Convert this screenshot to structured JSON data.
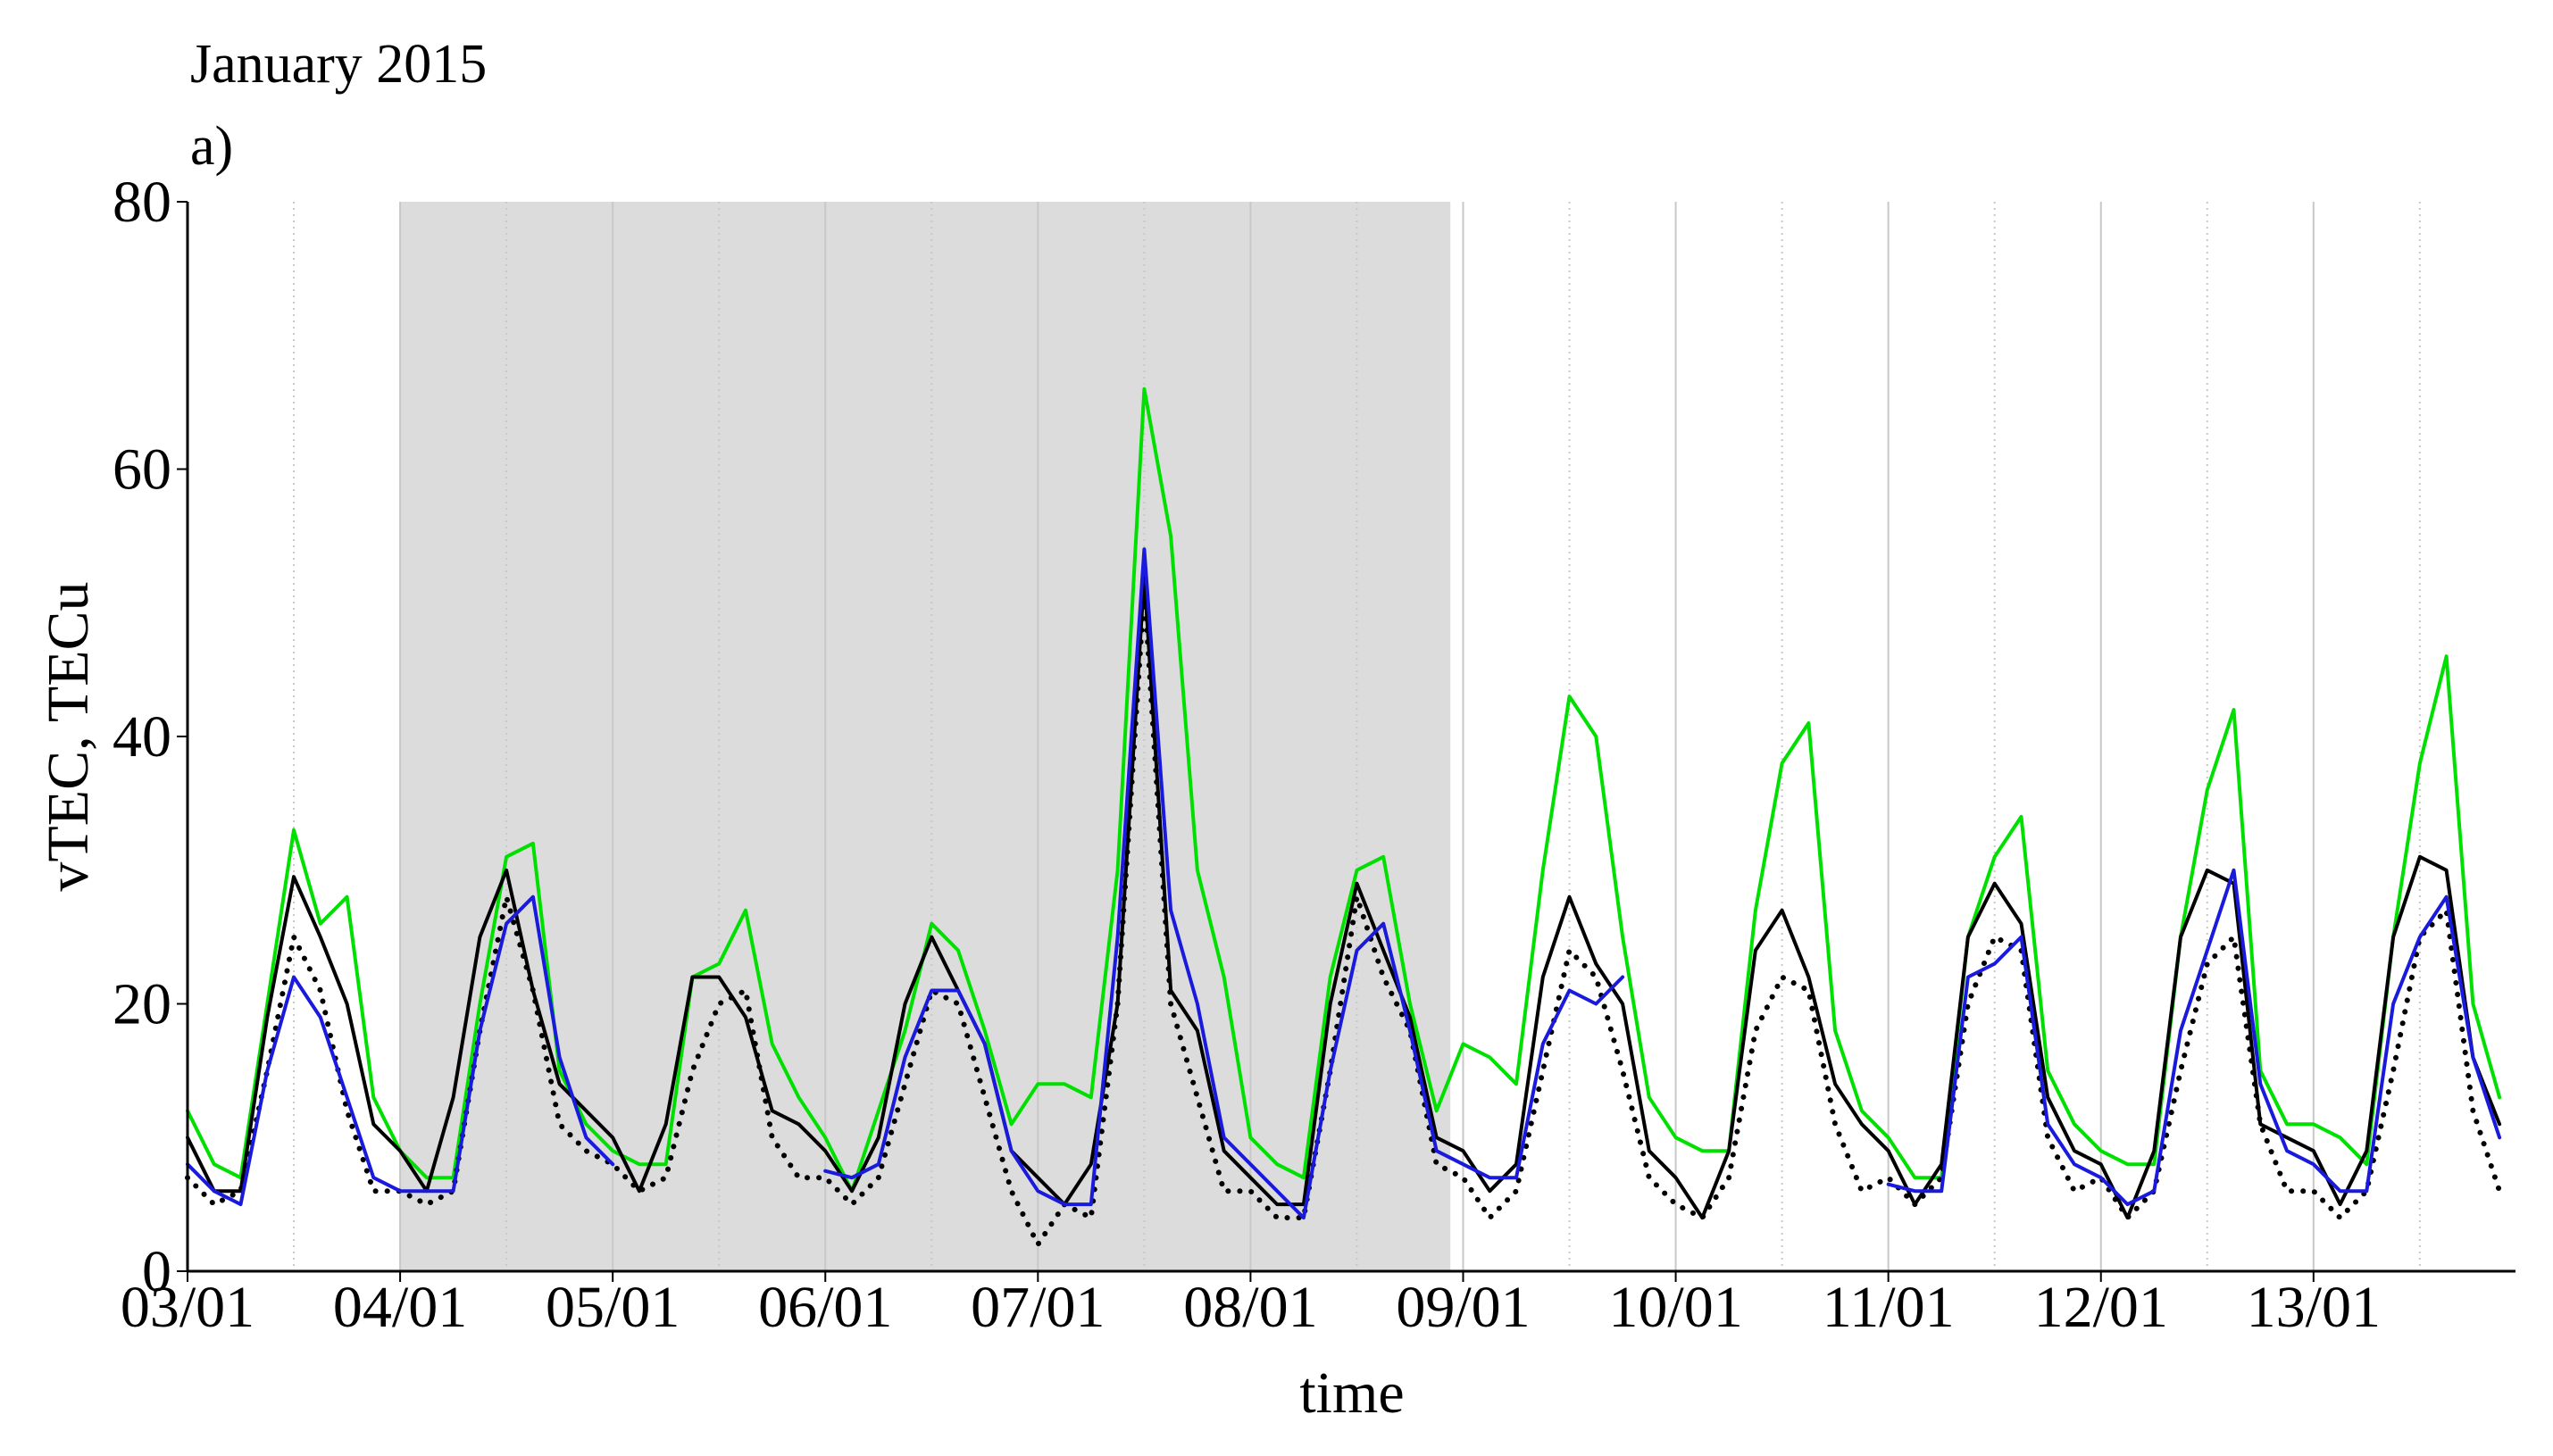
{
  "chart_data": {
    "type": "line",
    "title": "January 2015",
    "subtitle": "a)",
    "x_label": "time",
    "y_label": "vTEC, TECu",
    "xlim": [
      3,
      13.95
    ],
    "ylim": [
      0,
      80
    ],
    "yticks": [
      0,
      20,
      40,
      60,
      80
    ],
    "xticks": [
      {
        "value": 3,
        "label": "03/01"
      },
      {
        "value": 4,
        "label": "04/01"
      },
      {
        "value": 5,
        "label": "05/01"
      },
      {
        "value": 6,
        "label": "06/01"
      },
      {
        "value": 7,
        "label": "07/01"
      },
      {
        "value": 8,
        "label": "08/01"
      },
      {
        "value": 9,
        "label": "09/01"
      },
      {
        "value": 10,
        "label": "10/01"
      },
      {
        "value": 11,
        "label": "11/01"
      },
      {
        "value": 12,
        "label": "12/01"
      },
      {
        "value": 13,
        "label": "13/01"
      }
    ],
    "x_minor_grid": [
      3.5,
      4.5,
      5.5,
      6.5,
      7.5,
      8.5,
      9.5,
      10.5,
      11.5,
      12.5,
      13.5
    ],
    "grid": true,
    "highlight": {
      "xlim": [
        4,
        8.94
      ],
      "color": "#dcdcdc"
    },
    "x": [
      3,
      3.125,
      3.25,
      3.375,
      3.5,
      3.625,
      3.75,
      3.875,
      4,
      4.125,
      4.25,
      4.375,
      4.5,
      4.625,
      4.75,
      4.875,
      5,
      5.125,
      5.25,
      5.375,
      5.5,
      5.625,
      5.75,
      5.875,
      6,
      6.125,
      6.25,
      6.375,
      6.5,
      6.625,
      6.75,
      6.875,
      7,
      7.125,
      7.25,
      7.375,
      7.5,
      7.625,
      7.75,
      7.875,
      8,
      8.125,
      8.25,
      8.375,
      8.5,
      8.625,
      8.75,
      8.875,
      9,
      9.125,
      9.25,
      9.375,
      9.5,
      9.625,
      9.75,
      9.875,
      10,
      10.125,
      10.25,
      10.375,
      10.5,
      10.625,
      10.75,
      10.875,
      11,
      11.125,
      11.25,
      11.375,
      11.5,
      11.625,
      11.75,
      11.875,
      12,
      12.125,
      12.25,
      12.375,
      12.5,
      12.625,
      12.75,
      12.875,
      13,
      13.125,
      13.25,
      13.375,
      13.5,
      13.625,
      13.75,
      13.875
    ],
    "series": [
      {
        "color": "#00e000",
        "style": "solid",
        "values": [
          12,
          8,
          7,
          20,
          33,
          26,
          28,
          13,
          9,
          7,
          7,
          20,
          31,
          32,
          15,
          11,
          9,
          8,
          8,
          22,
          23,
          27,
          17,
          13,
          10,
          6,
          12,
          18,
          26,
          24,
          18,
          11,
          14,
          14,
          13,
          30,
          66,
          55,
          30,
          22,
          10,
          8,
          7,
          22,
          30,
          31,
          20,
          12,
          17,
          16,
          14,
          30,
          43,
          40,
          25,
          13,
          10,
          9,
          9,
          27,
          38,
          41,
          18,
          12,
          10,
          7,
          7,
          25,
          31,
          34,
          15,
          11,
          9,
          8,
          8,
          25,
          36,
          42,
          15,
          11,
          11,
          10,
          8,
          25,
          38,
          46,
          20,
          13
        ]
      },
      {
        "color": "#000000",
        "style": "dotted",
        "values": [
          7,
          5,
          6,
          15,
          25,
          21,
          12,
          6,
          6,
          5,
          6,
          18,
          28,
          21,
          11,
          9,
          8,
          6,
          7,
          15,
          20,
          21,
          10,
          7,
          7,
          5,
          7,
          14,
          21,
          20,
          13,
          6,
          2,
          5,
          4,
          20,
          51,
          20,
          13,
          6,
          6,
          4,
          4,
          15,
          28,
          22,
          18,
          8,
          7,
          4,
          6,
          15,
          24,
          22,
          15,
          7,
          5,
          4,
          7,
          18,
          22,
          21,
          11,
          6,
          7,
          5,
          7,
          20,
          25,
          24,
          10,
          6,
          7,
          4,
          6,
          15,
          23,
          25,
          11,
          6,
          6,
          4,
          6,
          15,
          25,
          27,
          12,
          6
        ]
      },
      {
        "color": "#000000",
        "style": "solid",
        "values": [
          10,
          6,
          6,
          19,
          29.5,
          25,
          20,
          11,
          9,
          6,
          13,
          25,
          30,
          21,
          14,
          12,
          10,
          6,
          11,
          22,
          22,
          19,
          12,
          11,
          9,
          6,
          10,
          20,
          25,
          21,
          17,
          9,
          7,
          5,
          8,
          20,
          52,
          21,
          18,
          9,
          7,
          5,
          5,
          20,
          29,
          24,
          19,
          10,
          9,
          6,
          8,
          22,
          28,
          23,
          20,
          9,
          7,
          4,
          9,
          24,
          27,
          22,
          14,
          11,
          9,
          5,
          8,
          25,
          29,
          26,
          13,
          9,
          8,
          4,
          9,
          25,
          30,
          29,
          11,
          10,
          9,
          5,
          9,
          25,
          31,
          30,
          16,
          11
        ]
      },
      {
        "color": "#1a1adc",
        "style": "solid",
        "values": [
          8,
          6,
          5,
          15,
          22,
          19,
          13,
          7,
          6,
          6,
          6,
          18,
          26,
          28,
          16,
          10,
          8,
          null,
          null,
          null,
          null,
          null,
          null,
          null,
          7.5,
          7,
          8,
          16,
          21,
          21,
          17,
          9,
          6,
          5,
          5,
          25,
          54,
          27,
          20,
          10,
          8,
          6,
          4,
          15,
          24,
          26,
          18,
          9,
          8,
          7,
          7,
          17,
          21,
          20,
          22,
          null,
          null,
          null,
          null,
          null,
          null,
          null,
          null,
          null,
          6.5,
          6,
          6,
          22,
          23,
          25,
          11,
          8,
          7,
          5,
          6,
          18,
          24,
          30,
          14,
          9,
          8,
          6,
          6,
          20,
          25,
          28,
          16,
          10
        ]
      }
    ]
  }
}
